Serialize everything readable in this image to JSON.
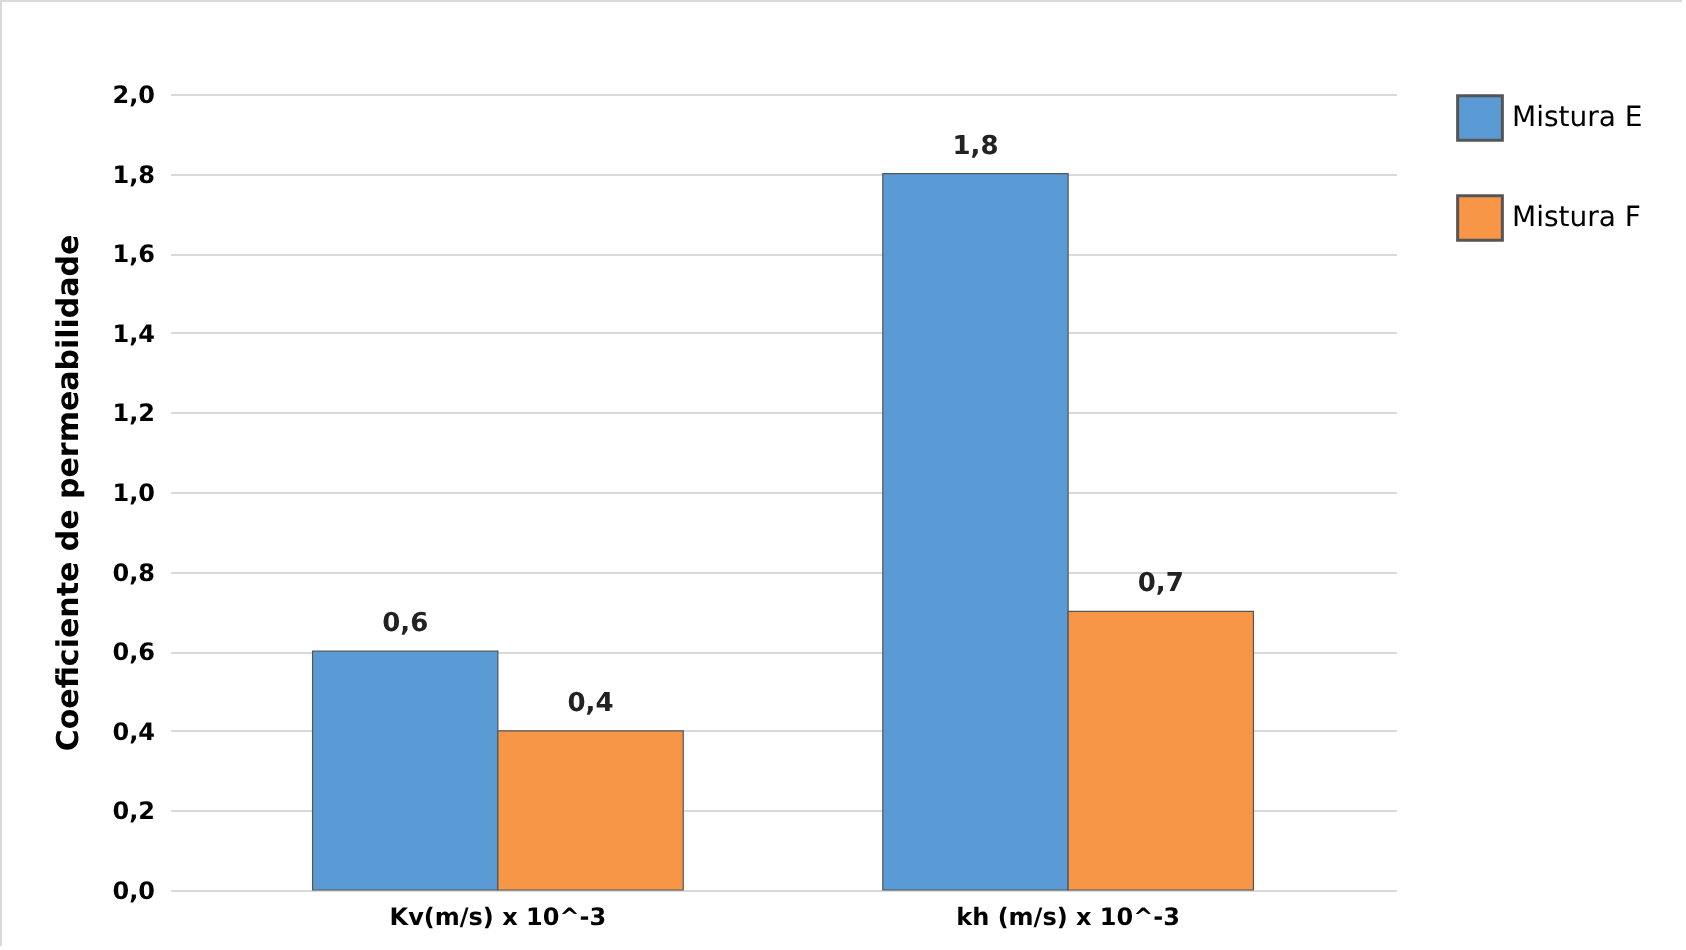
{
  "chart_data": {
    "type": "bar",
    "ylabel": "Coeficiente de permeabilidade",
    "categories": [
      "Kv(m/s) x 10^-3",
      "kh (m/s) x 10^-3"
    ],
    "series": [
      {
        "name": "Mistura E",
        "color": "#5b9bd5",
        "values": [
          0.6,
          1.8
        ],
        "value_labels": [
          "0,6",
          "1,8"
        ]
      },
      {
        "name": "Mistura F",
        "color": "#f79646",
        "values": [
          0.4,
          0.7
        ],
        "value_labels": [
          "0,4",
          "0,7"
        ]
      }
    ],
    "ylim": [
      0,
      2
    ],
    "yticks": [
      {
        "value": 0,
        "label": "0,0"
      },
      {
        "value": 0.2,
        "label": "0,2"
      },
      {
        "value": 0.4,
        "label": "0,4"
      },
      {
        "value": 0.6,
        "label": "0,6"
      },
      {
        "value": 0.8,
        "label": "0,8"
      },
      {
        "value": 1,
        "label": "1,0"
      },
      {
        "value": 1.2,
        "label": "1,2"
      },
      {
        "value": 1.4,
        "label": "1,4"
      },
      {
        "value": 1.6,
        "label": "1,6"
      },
      {
        "value": 1.8,
        "label": "1,8"
      },
      {
        "value": 2,
        "label": "2,0"
      }
    ],
    "grid": "y",
    "legend": "right"
  }
}
